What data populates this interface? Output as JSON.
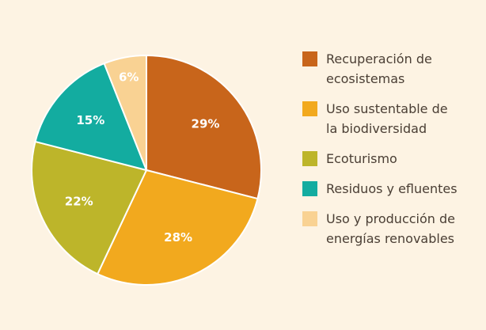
{
  "chart_data": {
    "type": "pie",
    "categories": [
      "Recuperación de ecosistemas",
      "Uso sustentable de la biodiversidad",
      "Ecoturismo",
      "Residuos y efluentes",
      "Uso y producción de energías renovables"
    ],
    "values": [
      29,
      28,
      22,
      15,
      6
    ],
    "value_labels": [
      "29%",
      "28%",
      "22%",
      "15%",
      "6%"
    ],
    "colors": [
      "#c8651b",
      "#f2a91e",
      "#bdb52a",
      "#13aca0",
      "#f9d293"
    ]
  }
}
